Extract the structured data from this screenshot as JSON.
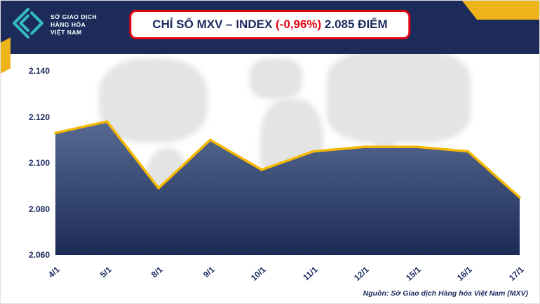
{
  "header": {
    "logo": {
      "line1": "SỞ GIAO DỊCH",
      "line2": "HÀNG HÓA",
      "line3": "VIỆT NAM"
    },
    "title_prefix": "CHỈ SỐ MXV – INDEX ",
    "title_change": "(-0,96%)",
    "title_suffix": " 2.085 ĐIỂM"
  },
  "chart_data": {
    "type": "area",
    "title": "CHỈ SỐ MXV – INDEX (-0,96%) 2.085 ĐIỂM",
    "x": [
      "4/1",
      "5/1",
      "8/1",
      "9/1",
      "10/1",
      "11/1",
      "12/1",
      "15/1",
      "16/1",
      "17/1"
    ],
    "values": [
      2113,
      2118,
      2089,
      2110,
      2097,
      2105,
      2107,
      2107,
      2105,
      2085
    ],
    "ylim": [
      2060,
      2140
    ],
    "yticks": [
      2060,
      2080,
      2100,
      2120,
      2140
    ],
    "ytick_labels": [
      "2.060",
      "2.080",
      "2.100",
      "2.120",
      "2.140"
    ],
    "baseline": 2060,
    "line_color": "#f5b800",
    "fill_top": "#576b92",
    "fill_bottom": "#1c2b55",
    "grid": false,
    "legend": "none"
  },
  "footer": {
    "source": "Nguồn: Sở Giao dịch Hàng hóa Việt Nam (MXV)"
  },
  "colors": {
    "navy": "#1c2b5a",
    "red": "#e30613",
    "yellow": "#f0b41b",
    "teal": "#33bac1"
  }
}
